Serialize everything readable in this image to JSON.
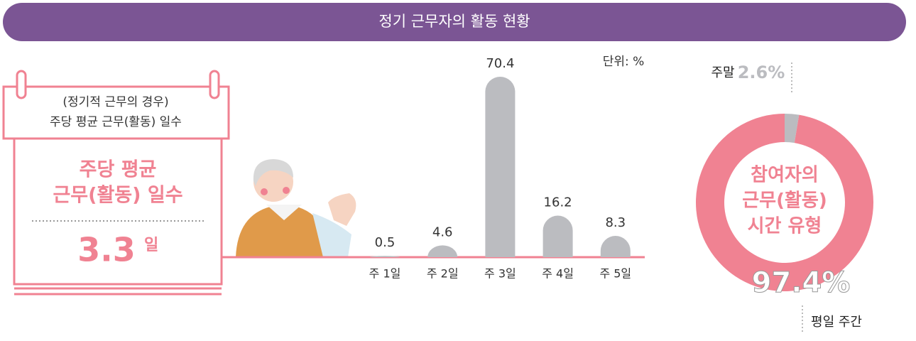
{
  "title": "정기 근무자의 활동 현황",
  "card": {
    "header": [
      "(정기적 근무의 경우)",
      "주당 평균 근무(활동) 일수"
    ],
    "label": [
      "주당 평균",
      "근무(활동) 일수"
    ],
    "value": "3.3",
    "unit": "일"
  },
  "chart_data": [
    {
      "type": "bar",
      "unit_label": "단위: %",
      "categories": [
        "주 1일",
        "주 2일",
        "주 3일",
        "주 4일",
        "주 5일"
      ],
      "values": [
        0.5,
        4.6,
        70.4,
        16.2,
        8.3
      ],
      "color": "#bbbcc0"
    },
    {
      "type": "pie",
      "center_label": [
        "참여자의",
        "근무(활동)",
        "시간 유형"
      ],
      "categories": [
        "주말",
        "평일 주간"
      ],
      "values": [
        2.6,
        97.4
      ],
      "value_labels": [
        "2.6%",
        "97.4%"
      ],
      "colors": [
        "#bbbcc0",
        "#f08292"
      ]
    }
  ]
}
